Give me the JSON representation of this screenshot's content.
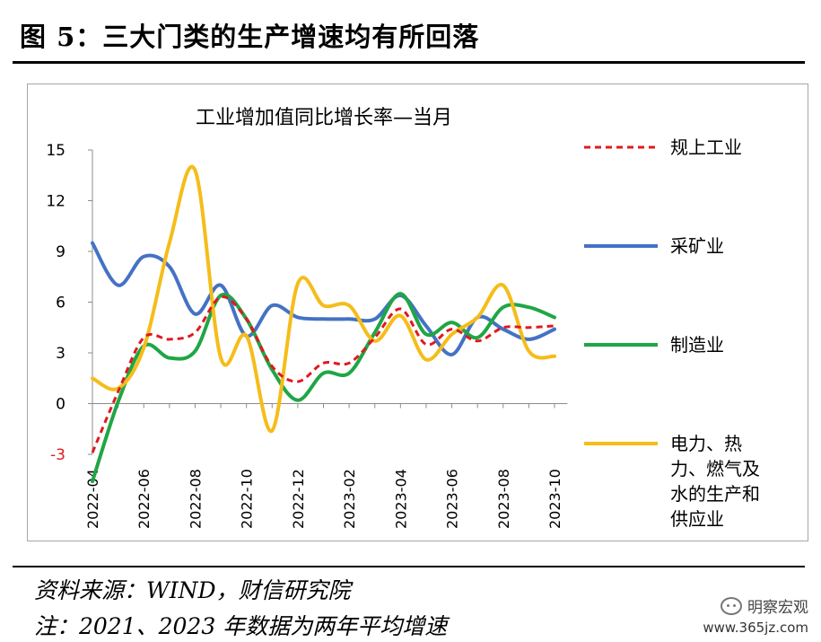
{
  "header": {
    "title": "图 5：三大门类的生产增速均有所回落"
  },
  "footer": {
    "source": "资料来源：WIND，财信研究院",
    "note": "注：2021、2023 年数据为两年平均增速"
  },
  "watermark": {
    "name": "明察宏观",
    "url": "www.365jz.com",
    "icon": "wechat-icon"
  },
  "chart_data": {
    "type": "line",
    "title": "工业增加值同比增长率—当月",
    "ylim": [
      -3,
      15
    ],
    "yticks": [
      -3,
      0,
      3,
      6,
      9,
      12,
      15
    ],
    "x": [
      "2022-04",
      "2022-05",
      "2022-06",
      "2022-07",
      "2022-08",
      "2022-09",
      "2022-10",
      "2022-11",
      "2022-12",
      "2023-01",
      "2023-02",
      "2023-03",
      "2023-04",
      "2023-05",
      "2023-06",
      "2023-07",
      "2023-08",
      "2023-09",
      "2023-10"
    ],
    "xtick_labels": [
      "2022-04",
      "2022-06",
      "2022-08",
      "2022-10",
      "2022-12",
      "2023-02",
      "2023-04",
      "2023-06",
      "2023-08",
      "2023-10"
    ],
    "grid": false,
    "legend_position": "right",
    "series": [
      {
        "name": "规上工业",
        "color": "#e0191f",
        "dash": "7,5",
        "values": [
          -2.9,
          0.7,
          3.9,
          3.8,
          4.2,
          6.3,
          5.0,
          2.2,
          1.3,
          2.4,
          2.4,
          3.9,
          5.6,
          3.5,
          4.4,
          3.7,
          4.5,
          4.5,
          4.6
        ]
      },
      {
        "name": "采矿业",
        "color": "#4472c4",
        "dash": "",
        "values": [
          9.5,
          7.0,
          8.7,
          8.1,
          5.3,
          7.0,
          4.0,
          5.8,
          5.1,
          5.0,
          5.0,
          5.0,
          6.4,
          4.6,
          2.9,
          5.1,
          4.4,
          3.8,
          4.4
        ]
      },
      {
        "name": "制造业",
        "color": "#1fa645",
        "dash": "",
        "values": [
          -4.6,
          0.1,
          3.4,
          2.7,
          3.1,
          6.4,
          5.0,
          2.0,
          0.2,
          1.8,
          1.8,
          4.2,
          6.5,
          4.1,
          4.8,
          3.9,
          5.7,
          5.7,
          5.1
        ]
      },
      {
        "name": "电力、热力、燃气及水的生产和供应业",
        "color": "#f5bd19",
        "dash": "",
        "values": [
          1.5,
          0.9,
          3.3,
          9.5,
          13.8,
          2.7,
          4.0,
          -1.6,
          7.1,
          5.8,
          5.8,
          3.7,
          5.2,
          2.6,
          4.1,
          5.1,
          7.0,
          3.1,
          2.8
        ]
      }
    ]
  }
}
